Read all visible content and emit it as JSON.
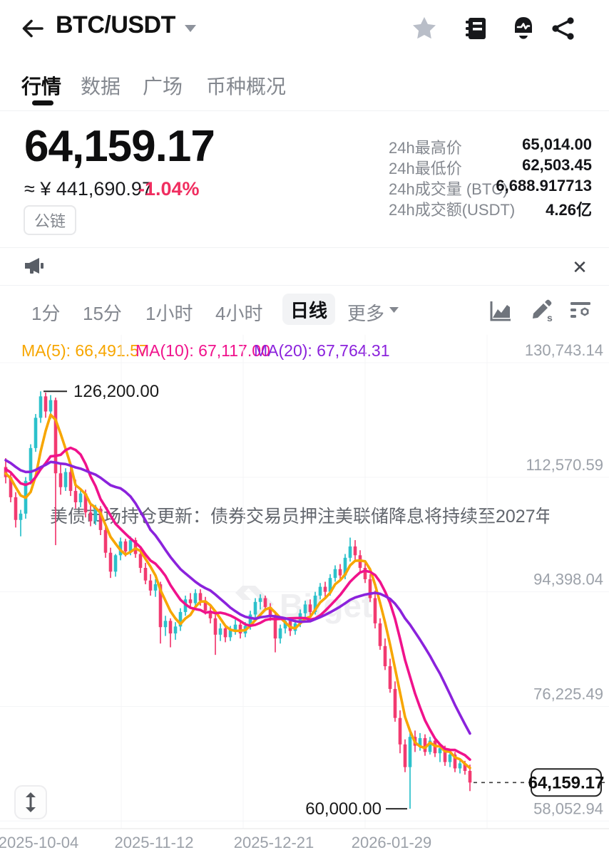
{
  "header": {
    "title": "BTC/USDT",
    "icons": {
      "back": "back-arrow",
      "favorite": "star",
      "orderbook": "book",
      "alert": "bell",
      "share": "share"
    }
  },
  "tabs": [
    {
      "label": "行情",
      "active": true
    },
    {
      "label": "数据",
      "active": false
    },
    {
      "label": "广场",
      "active": false
    },
    {
      "label": "币种概况",
      "active": false
    }
  ],
  "price": {
    "last": "64,159.17",
    "fiat": "≈ ¥ 441,690.97",
    "change": "-1.04%",
    "tag": "公链"
  },
  "stats": [
    {
      "label": "24h最高价",
      "value": "65,014.00"
    },
    {
      "label": "24h最低价",
      "value": "62,503.45"
    },
    {
      "label": "24h成交量 (BTC)",
      "value": "6,688.917713"
    },
    {
      "label": "24h成交额(USDT)",
      "value": "4.26亿"
    }
  ],
  "news": {
    "text": "美债市场持仓更新：债券交易员押注美联储降息将持续至2027年",
    "close": "✕"
  },
  "toolbar": {
    "timeframes": [
      {
        "label": "1分",
        "active": false
      },
      {
        "label": "15分",
        "active": false
      },
      {
        "label": "1小时",
        "active": false
      },
      {
        "label": "4小时",
        "active": false
      },
      {
        "label": "日线",
        "active": true
      },
      {
        "label": "更多",
        "active": false
      }
    ]
  },
  "ma_row": [
    {
      "text": "MA(5): 66,491.57",
      "color": "#F7A600"
    },
    {
      "text": "MA(10): 67,117.00",
      "color": "#F0128C"
    },
    {
      "text": "MA(20): 67,764.31",
      "color": "#8B22DC"
    }
  ],
  "colors": {
    "up": "#2BC1CB",
    "down": "#F23A70",
    "negative_text": "#F02E60",
    "grid": "#f4f5f7",
    "tick_text": "#9ca1a9",
    "watermark": "#efeff1"
  },
  "chart_data": {
    "type": "candlestick",
    "symbol": "BTC/USDT",
    "interval": "日线",
    "watermark": "Bitget",
    "y_axis": {
      "ticks": [
        {
          "label": "130,743.14",
          "value": 130743.14
        },
        {
          "label": "112,570.59",
          "value": 112570.59
        },
        {
          "label": "94,398.04",
          "value": 94398.04
        },
        {
          "label": "76,225.49",
          "value": 76225.49
        },
        {
          "label": "58,052.94",
          "value": 58052.94
        }
      ]
    },
    "x_axis": {
      "labels": [
        "2025-10-04",
        "2025-11-12",
        "2025-12-21",
        "2026-01-29"
      ]
    },
    "annotations": {
      "high": {
        "label": "126,200.00",
        "value": 126200
      },
      "low": {
        "label": "60,000.00",
        "value": 60000
      },
      "last": {
        "label": "64,159.17",
        "value": 64159.17
      }
    },
    "moving_averages": [
      {
        "period": 5,
        "color": "#F7A600"
      },
      {
        "period": 10,
        "color": "#F0128C"
      },
      {
        "period": 20,
        "color": "#8B22DC"
      }
    ],
    "ma_seed": [
      119000,
      118500,
      118000,
      117500,
      117200,
      116800,
      116500,
      116200,
      115800,
      115400,
      115000,
      114600,
      114800,
      115200,
      114400,
      113800,
      113200,
      112800,
      113400,
      113800
    ],
    "candles_ohlc": [
      [
        114200,
        115600,
        111600,
        112600
      ],
      [
        112600,
        113400,
        108600,
        109400
      ],
      [
        109400,
        110200,
        104600,
        105800
      ],
      [
        105800,
        107400,
        103200,
        106800
      ],
      [
        106800,
        112600,
        106000,
        112000
      ],
      [
        112000,
        117800,
        111400,
        117200
      ],
      [
        117200,
        122600,
        116600,
        122000
      ],
      [
        122000,
        126200,
        121200,
        125400
      ],
      [
        125400,
        126000,
        122000,
        123000
      ],
      [
        123000,
        125600,
        121800,
        124800
      ],
      [
        124800,
        125200,
        101800,
        113200
      ],
      [
        113200,
        114600,
        109800,
        111000
      ],
      [
        111000,
        114000,
        110400,
        113400
      ],
      [
        113400,
        114200,
        109600,
        110400
      ],
      [
        110400,
        112200,
        107600,
        108600
      ],
      [
        108600,
        110800,
        107800,
        110000
      ],
      [
        110000,
        110600,
        106200,
        107000
      ],
      [
        107000,
        108400,
        104800,
        105600
      ],
      [
        105600,
        108200,
        105000,
        107600
      ],
      [
        107600,
        108000,
        103400,
        104200
      ],
      [
        104200,
        105000,
        99800,
        100600
      ],
      [
        100600,
        101400,
        96600,
        97600
      ],
      [
        97600,
        100400,
        96800,
        100200
      ],
      [
        100200,
        103000,
        99400,
        102400
      ],
      [
        102400,
        102800,
        100000,
        100800
      ],
      [
        100800,
        103200,
        100200,
        102600
      ],
      [
        102600,
        103000,
        99800,
        100400
      ],
      [
        100400,
        101200,
        97400,
        98200
      ],
      [
        98200,
        99000,
        95600,
        96200
      ],
      [
        96200,
        97200,
        93800,
        94600
      ],
      [
        94600,
        96400,
        93600,
        95600
      ],
      [
        95600,
        96000,
        86200,
        88800
      ],
      [
        88800,
        90600,
        87400,
        89800
      ],
      [
        89800,
        90200,
        85600,
        87800
      ],
      [
        87800,
        89600,
        86800,
        88900
      ],
      [
        88900,
        91800,
        88200,
        91200
      ],
      [
        91200,
        93800,
        90600,
        93200
      ],
      [
        93200,
        94200,
        91800,
        92600
      ],
      [
        92600,
        94800,
        92000,
        94200
      ],
      [
        94200,
        94800,
        92200,
        93000
      ],
      [
        93000,
        93600,
        90800,
        91400
      ],
      [
        91400,
        92200,
        89400,
        90200
      ],
      [
        90200,
        90800,
        84400,
        87600
      ],
      [
        87600,
        89400,
        86600,
        88600
      ],
      [
        88600,
        89200,
        86400,
        87200
      ],
      [
        87200,
        89000,
        86600,
        88400
      ],
      [
        88400,
        90000,
        87600,
        89200
      ],
      [
        89200,
        89800,
        87000,
        87800
      ],
      [
        87800,
        89600,
        87200,
        89000
      ],
      [
        89000,
        91400,
        88400,
        90800
      ],
      [
        90800,
        93400,
        90200,
        92800
      ],
      [
        92800,
        94000,
        91600,
        93400
      ],
      [
        93400,
        93800,
        91400,
        92000
      ],
      [
        92000,
        92600,
        89800,
        90400
      ],
      [
        90400,
        91000,
        84800,
        87000
      ],
      [
        87000,
        89200,
        86200,
        88600
      ],
      [
        88600,
        90400,
        87800,
        89800
      ],
      [
        89800,
        90200,
        87400,
        88200
      ],
      [
        88200,
        90000,
        87600,
        89400
      ],
      [
        89400,
        91600,
        88800,
        91000
      ],
      [
        91000,
        93000,
        90400,
        92400
      ],
      [
        92400,
        93200,
        90600,
        91200
      ],
      [
        91200,
        94400,
        90800,
        93800
      ],
      [
        93800,
        95800,
        93200,
        95200
      ],
      [
        95200,
        96000,
        93600,
        94400
      ],
      [
        94400,
        97200,
        93800,
        96600
      ],
      [
        96600,
        98600,
        96000,
        98000
      ],
      [
        98000,
        98800,
        96200,
        97000
      ],
      [
        97000,
        100400,
        96400,
        99800
      ],
      [
        99800,
        103000,
        99200,
        101600
      ],
      [
        101600,
        102600,
        99400,
        100200
      ],
      [
        100200,
        101000,
        97600,
        98200
      ],
      [
        98200,
        99000,
        95800,
        96400
      ],
      [
        96400,
        97200,
        92800,
        93400
      ],
      [
        93400,
        94600,
        88600,
        89400
      ],
      [
        89400,
        90200,
        85200,
        85800
      ],
      [
        85800,
        87000,
        82000,
        82600
      ],
      [
        82600,
        83800,
        78400,
        79000
      ],
      [
        79000,
        80200,
        73800,
        74400
      ],
      [
        74400,
        75600,
        68800,
        70200
      ],
      [
        70200,
        71000,
        65800,
        66600
      ],
      [
        66600,
        72200,
        60000,
        71400
      ],
      [
        71400,
        72400,
        69000,
        70000
      ],
      [
        70000,
        72000,
        69200,
        71200
      ],
      [
        71200,
        71800,
        68400,
        69000
      ],
      [
        69000,
        71400,
        68600,
        70800
      ],
      [
        70800,
        71200,
        68200,
        68800
      ],
      [
        68800,
        70200,
        67400,
        69600
      ],
      [
        69600,
        70000,
        66800,
        67400
      ],
      [
        67400,
        69200,
        66600,
        68600
      ],
      [
        68600,
        69000,
        65800,
        66400
      ],
      [
        66400,
        68000,
        65600,
        67200
      ],
      [
        67200,
        67600,
        65400,
        66000
      ],
      [
        66000,
        67000,
        62800,
        64159.17
      ]
    ]
  }
}
